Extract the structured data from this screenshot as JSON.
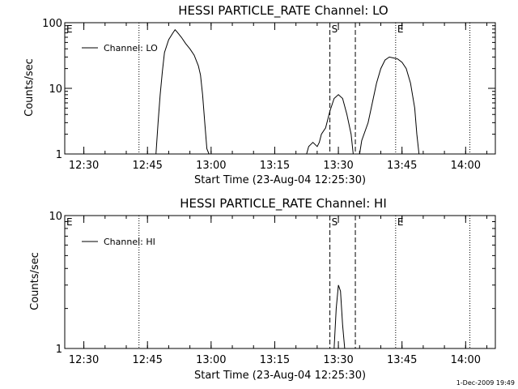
{
  "chart_data": [
    {
      "type": "line",
      "title": "HESSI PARTICLE_RATE Channel: LO",
      "xlabel": "Start Time (23-Aug-04 12:25:30)",
      "ylabel": "Counts/sec",
      "y_scale": "log",
      "xlim": [
        "12:25:30",
        "14:07:00"
      ],
      "ylim": [
        1,
        100
      ],
      "x_ticks": [
        "12:30",
        "12:45",
        "13:00",
        "13:15",
        "13:30",
        "13:45",
        "14:00"
      ],
      "y_ticks": [
        "1",
        "10",
        "100"
      ],
      "legend": {
        "placement": "top-left",
        "entries": [
          "Channel: LO"
        ]
      },
      "markers": [
        {
          "label": "E",
          "time": "12:25:30",
          "style": "dotted"
        },
        {
          "time": "12:43:00",
          "style": "dotted"
        },
        {
          "label": "S",
          "time": "13:28:00",
          "style": "dashed"
        },
        {
          "time": "13:34:00",
          "style": "dashed"
        },
        {
          "label": "E",
          "time": "13:43:30",
          "style": "dotted"
        },
        {
          "time": "14:01:00",
          "style": "dotted"
        }
      ],
      "series": [
        {
          "name": "Channel: LO",
          "segments": [
            [
              [
                "12:47:00",
                1
              ],
              [
                "12:47:30",
                3
              ],
              [
                "12:48:00",
                8
              ],
              [
                "12:48:30",
                18
              ],
              [
                "12:49:00",
                35
              ],
              [
                "12:50:00",
                55
              ],
              [
                "12:51:00",
                70
              ],
              [
                "12:51:30",
                78
              ],
              [
                "12:52:00",
                72
              ],
              [
                "12:53:00",
                60
              ],
              [
                "12:54:00",
                48
              ],
              [
                "12:55:00",
                40
              ],
              [
                "12:56:00",
                32
              ],
              [
                "12:57:00",
                22
              ],
              [
                "12:57:30",
                16
              ],
              [
                "12:58:00",
                8
              ],
              [
                "12:58:30",
                3
              ],
              [
                "12:59:00",
                1.2
              ],
              [
                "12:59:30",
                1
              ]
            ],
            [
              [
                "13:22:30",
                1
              ],
              [
                "13:23:00",
                1.3
              ],
              [
                "13:24:00",
                1.5
              ],
              [
                "13:25:00",
                1.3
              ],
              [
                "13:25:30",
                1.5
              ],
              [
                "13:26:00",
                2
              ],
              [
                "13:27:00",
                2.5
              ],
              [
                "13:28:00",
                4.5
              ],
              [
                "13:29:00",
                7
              ],
              [
                "13:30:00",
                8
              ],
              [
                "13:31:00",
                7
              ],
              [
                "13:32:00",
                4
              ],
              [
                "13:33:00",
                2
              ],
              [
                "13:33:30",
                1
              ]
            ],
            [
              [
                "13:35:00",
                1
              ],
              [
                "13:35:30",
                1.6
              ],
              [
                "13:37:00",
                3
              ],
              [
                "13:38:00",
                6
              ],
              [
                "13:39:00",
                12
              ],
              [
                "13:40:00",
                20
              ],
              [
                "13:41:00",
                27
              ],
              [
                "13:42:00",
                30
              ],
              [
                "13:43:00",
                29
              ],
              [
                "13:44:00",
                28
              ],
              [
                "13:45:00",
                25
              ],
              [
                "13:46:00",
                20
              ],
              [
                "13:47:00",
                12
              ],
              [
                "13:48:00",
                5
              ],
              [
                "13:48:30",
                2
              ],
              [
                "13:49:00",
                1
              ]
            ]
          ]
        }
      ]
    },
    {
      "type": "line",
      "title": "HESSI PARTICLE_RATE Channel: HI",
      "xlabel": "Start Time (23-Aug-04 12:25:30)",
      "ylabel": "Counts/sec",
      "y_scale": "log",
      "xlim": [
        "12:25:30",
        "14:07:00"
      ],
      "ylim": [
        1,
        10
      ],
      "x_ticks": [
        "12:30",
        "12:45",
        "13:00",
        "13:15",
        "13:30",
        "13:45",
        "14:00"
      ],
      "y_ticks": [
        "1",
        "10"
      ],
      "legend": {
        "placement": "top-left",
        "entries": [
          "Channel: HI"
        ]
      },
      "markers": [
        {
          "label": "E",
          "time": "12:25:30",
          "style": "dotted"
        },
        {
          "time": "12:43:00",
          "style": "dotted"
        },
        {
          "label": "S",
          "time": "13:28:00",
          "style": "dashed"
        },
        {
          "time": "13:34:00",
          "style": "dashed"
        },
        {
          "label": "E",
          "time": "13:43:30",
          "style": "dotted"
        },
        {
          "time": "14:01:00",
          "style": "dotted"
        }
      ],
      "series": [
        {
          "name": "Channel: HI",
          "segments": [
            [
              [
                "13:29:00",
                1
              ],
              [
                "13:29:30",
                2
              ],
              [
                "13:30:00",
                3
              ],
              [
                "13:30:30",
                2.7
              ],
              [
                "13:31:00",
                1.5
              ],
              [
                "13:31:30",
                1
              ]
            ]
          ]
        }
      ]
    }
  ],
  "footer": {
    "timestamp": "1-Dec-2009 19:49"
  }
}
